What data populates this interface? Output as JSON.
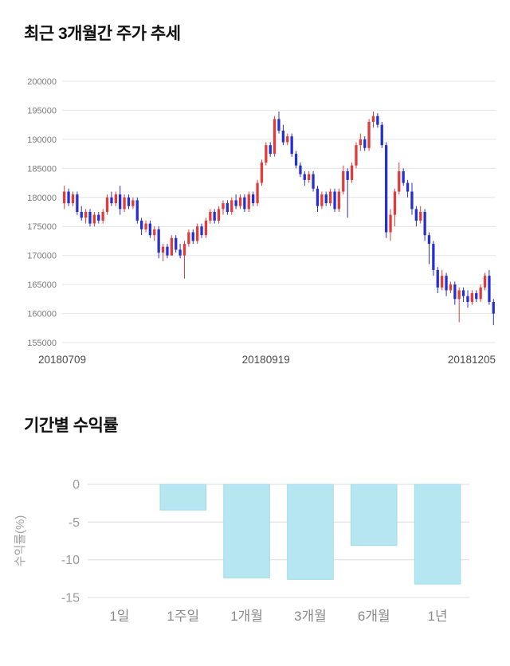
{
  "sections": {
    "price": {
      "title": "최근 3개월간 주가 추세"
    },
    "returns": {
      "title": "기간별 수익률"
    }
  },
  "chart_data": [
    {
      "type": "candlestick",
      "title": "최근 3개월간 주가 추세",
      "ylim": [
        155000,
        200000
      ],
      "yticks": [
        155000,
        160000,
        165000,
        170000,
        175000,
        180000,
        185000,
        190000,
        195000,
        200000
      ],
      "xticks": [
        {
          "label": "20180709",
          "pos": 0.0,
          "anchor": "middle"
        },
        {
          "label": "20180919",
          "pos": 0.47,
          "anchor": "middle"
        },
        {
          "label": "20181205",
          "pos": 1.0,
          "anchor": "end"
        }
      ],
      "grid": true,
      "grid_color": "#e4e4e4",
      "up_color": "#e23b3b",
      "down_color": "#2730cf",
      "candles": [
        [
          179000,
          182000,
          178000,
          181000
        ],
        [
          181000,
          181500,
          178500,
          179000
        ],
        [
          179000,
          181000,
          178500,
          180500
        ],
        [
          180500,
          181000,
          177000,
          177500
        ],
        [
          177500,
          178500,
          176000,
          176500
        ],
        [
          176500,
          178000,
          175500,
          177500
        ],
        [
          177500,
          178000,
          175000,
          175500
        ],
        [
          175500,
          177500,
          175000,
          177000
        ],
        [
          177000,
          177500,
          175500,
          176000
        ],
        [
          176000,
          178000,
          175500,
          177500
        ],
        [
          177500,
          180500,
          177000,
          180000
        ],
        [
          180000,
          181000,
          178500,
          179000
        ],
        [
          179000,
          181000,
          178500,
          180500
        ],
        [
          180500,
          182000,
          177000,
          178000
        ],
        [
          178000,
          180500,
          177500,
          180000
        ],
        [
          180000,
          180500,
          178000,
          178500
        ],
        [
          178500,
          180000,
          178000,
          179500
        ],
        [
          179500,
          180000,
          175500,
          176000
        ],
        [
          176000,
          176500,
          173500,
          174500
        ],
        [
          174500,
          176000,
          174000,
          175500
        ],
        [
          175500,
          176000,
          173000,
          173500
        ],
        [
          173500,
          175000,
          172500,
          174500
        ],
        [
          174500,
          175000,
          169500,
          170500
        ],
        [
          170500,
          172000,
          169000,
          171500
        ],
        [
          171500,
          172000,
          169500,
          170000
        ],
        [
          170000,
          173500,
          170000,
          173000
        ],
        [
          173000,
          173500,
          170500,
          171000
        ],
        [
          171000,
          172000,
          169500,
          170000
        ],
        [
          170000,
          172500,
          166000,
          172000
        ],
        [
          172000,
          174500,
          171500,
          174000
        ],
        [
          174000,
          174500,
          172000,
          172500
        ],
        [
          172500,
          175500,
          172000,
          175000
        ],
        [
          175000,
          175500,
          173000,
          173500
        ],
        [
          173500,
          176500,
          173000,
          176000
        ],
        [
          176000,
          178000,
          175500,
          177500
        ],
        [
          177500,
          178000,
          175500,
          176000
        ],
        [
          176000,
          178500,
          175500,
          178000
        ],
        [
          178000,
          179500,
          177000,
          179000
        ],
        [
          179000,
          179500,
          177000,
          177500
        ],
        [
          177500,
          180000,
          177000,
          179500
        ],
        [
          179500,
          180500,
          178000,
          178500
        ],
        [
          178500,
          180500,
          178000,
          180000
        ],
        [
          180000,
          180500,
          177500,
          178000
        ],
        [
          178000,
          181000,
          177500,
          180500
        ],
        [
          180500,
          181000,
          178500,
          179000
        ],
        [
          179000,
          183000,
          178500,
          182500
        ],
        [
          182500,
          186500,
          182000,
          186000
        ],
        [
          186000,
          189500,
          185500,
          189000
        ],
        [
          189000,
          189500,
          187000,
          187500
        ],
        [
          187500,
          194000,
          187000,
          193500
        ],
        [
          193500,
          194800,
          191000,
          191500
        ],
        [
          191500,
          192500,
          189000,
          189500
        ],
        [
          189500,
          191000,
          189000,
          190500
        ],
        [
          190500,
          191000,
          187000,
          187500
        ],
        [
          187500,
          188000,
          185000,
          185500
        ],
        [
          185500,
          186000,
          183500,
          184000
        ],
        [
          184000,
          184500,
          182000,
          183000
        ],
        [
          183000,
          184500,
          182500,
          184000
        ],
        [
          184000,
          184500,
          181000,
          181500
        ],
        [
          181500,
          182000,
          177500,
          178500
        ],
        [
          178500,
          181000,
          178000,
          180500
        ],
        [
          180500,
          181000,
          178500,
          179000
        ],
        [
          179000,
          181500,
          178500,
          181000
        ],
        [
          181000,
          181500,
          177500,
          178000
        ],
        [
          178000,
          181500,
          177500,
          181000
        ],
        [
          181000,
          185500,
          180500,
          184500
        ],
        [
          184500,
          185000,
          176500,
          183000
        ],
        [
          183000,
          186000,
          182500,
          185500
        ],
        [
          185500,
          189500,
          185000,
          189000
        ],
        [
          189000,
          191000,
          188000,
          190000
        ],
        [
          190000,
          190500,
          188000,
          188500
        ],
        [
          188500,
          193500,
          188000,
          193000
        ],
        [
          193000,
          194800,
          192000,
          194000
        ],
        [
          194000,
          194500,
          192000,
          192500
        ],
        [
          192500,
          193000,
          188500,
          189000
        ],
        [
          189000,
          189500,
          173000,
          174000
        ],
        [
          174000,
          178000,
          172500,
          177000
        ],
        [
          177000,
          181500,
          175000,
          181000
        ],
        [
          181000,
          186000,
          180500,
          184500
        ],
        [
          184500,
          185000,
          182000,
          182500
        ],
        [
          182500,
          183000,
          180000,
          181000
        ],
        [
          181000,
          182500,
          177000,
          178000
        ],
        [
          178000,
          178500,
          175000,
          176000
        ],
        [
          176000,
          178500,
          175500,
          177500
        ],
        [
          177500,
          178000,
          172500,
          173500
        ],
        [
          173500,
          174000,
          168500,
          172000
        ],
        [
          172000,
          172500,
          166500,
          167500
        ],
        [
          167500,
          168000,
          163500,
          164500
        ],
        [
          164500,
          167500,
          164000,
          166500
        ],
        [
          166500,
          167000,
          163000,
          164000
        ],
        [
          164000,
          165500,
          163500,
          165000
        ],
        [
          165000,
          165500,
          161500,
          162500
        ],
        [
          162500,
          164500,
          158500,
          164000
        ],
        [
          164000,
          164500,
          162000,
          163000
        ],
        [
          163000,
          164000,
          161000,
          162000
        ],
        [
          162000,
          164000,
          161500,
          163500
        ],
        [
          163500,
          164000,
          162000,
          162500
        ],
        [
          162500,
          165000,
          162000,
          164500
        ],
        [
          164500,
          167000,
          164000,
          166500
        ],
        [
          166500,
          167500,
          161500,
          162000
        ],
        [
          162000,
          162500,
          158000,
          160000
        ]
      ]
    },
    {
      "type": "bar",
      "title": "기간별 수익률",
      "categories": [
        "1일",
        "1주일",
        "1개월",
        "3개월",
        "6개월",
        "1년"
      ],
      "values": [
        0,
        -3.4,
        -12.4,
        -12.6,
        -8.1,
        -13.2
      ],
      "ylabel": "수익률(%)",
      "xlabel": "",
      "ylim": [
        -15,
        0
      ],
      "yticks": [
        0,
        -5,
        -10,
        -15
      ],
      "grid": true,
      "grid_color": "#dcdcdc",
      "bar_color": "#b6e7f1",
      "bar_border": "#9edcea",
      "legend": "none"
    }
  ]
}
